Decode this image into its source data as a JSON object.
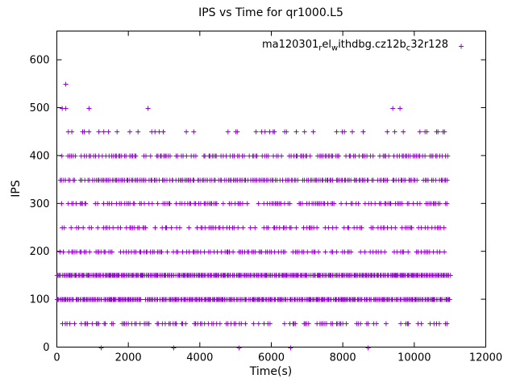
{
  "chart_data": {
    "type": "scatter",
    "title": "IPS vs Time for qr1000.L5",
    "xlabel": "Time(s)",
    "ylabel": "IPS",
    "xlim": [
      0,
      12000
    ],
    "ylim": [
      0,
      660
    ],
    "xticks": [
      0,
      2000,
      4000,
      6000,
      8000,
      10000,
      12000
    ],
    "yticks": [
      0,
      100,
      200,
      300,
      400,
      500,
      600
    ],
    "grid": false,
    "legend_position": "inside-top-right",
    "series_name": "ma120301_rel_withdbg.cz12b_c32r128",
    "legend_parts": [
      {
        "t": "ma120301",
        "sub": false
      },
      {
        "t": "r",
        "sub": true
      },
      {
        "t": "el",
        "sub": false
      },
      {
        "t": "w",
        "sub": true
      },
      {
        "t": "ithdbg.cz12b",
        "sub": false
      },
      {
        "t": "c",
        "sub": true
      },
      {
        "t": "32r128",
        "sub": false
      }
    ],
    "marker": "+",
    "color": "#9400d3",
    "x_data_range": [
      0,
      11000
    ],
    "bands": [
      {
        "y": 50,
        "x0": 100,
        "x1": 10950,
        "density": 0.5
      },
      {
        "y": 100,
        "x0": 0,
        "x1": 11000,
        "density": 0.96
      },
      {
        "y": 150,
        "x0": 0,
        "x1": 11000,
        "density": 1.0
      },
      {
        "y": 200,
        "x0": 100,
        "x1": 10950,
        "density": 0.55
      },
      {
        "y": 250,
        "x0": 100,
        "x1": 10950,
        "density": 0.42
      },
      {
        "y": 300,
        "x0": 100,
        "x1": 10950,
        "density": 0.6
      },
      {
        "y": 350,
        "x0": 100,
        "x1": 10950,
        "density": 0.85
      },
      {
        "y": 400,
        "x0": 50,
        "x1": 10950,
        "density": 0.6
      },
      {
        "y": 450,
        "x0": 100,
        "x1": 11000,
        "density": 0.2
      }
    ],
    "sparse_points": [
      {
        "x": 250,
        "y": 550
      },
      {
        "x": 150,
        "y": 500
      },
      {
        "x": 250,
        "y": 500
      },
      {
        "x": 900,
        "y": 500
      },
      {
        "x": 2550,
        "y": 500
      },
      {
        "x": 9400,
        "y": 500
      },
      {
        "x": 9600,
        "y": 500
      },
      {
        "x": 1240,
        "y": 0
      },
      {
        "x": 3270,
        "y": 0
      },
      {
        "x": 5100,
        "y": 0
      },
      {
        "x": 6540,
        "y": 0
      },
      {
        "x": 8710,
        "y": 0
      }
    ]
  }
}
